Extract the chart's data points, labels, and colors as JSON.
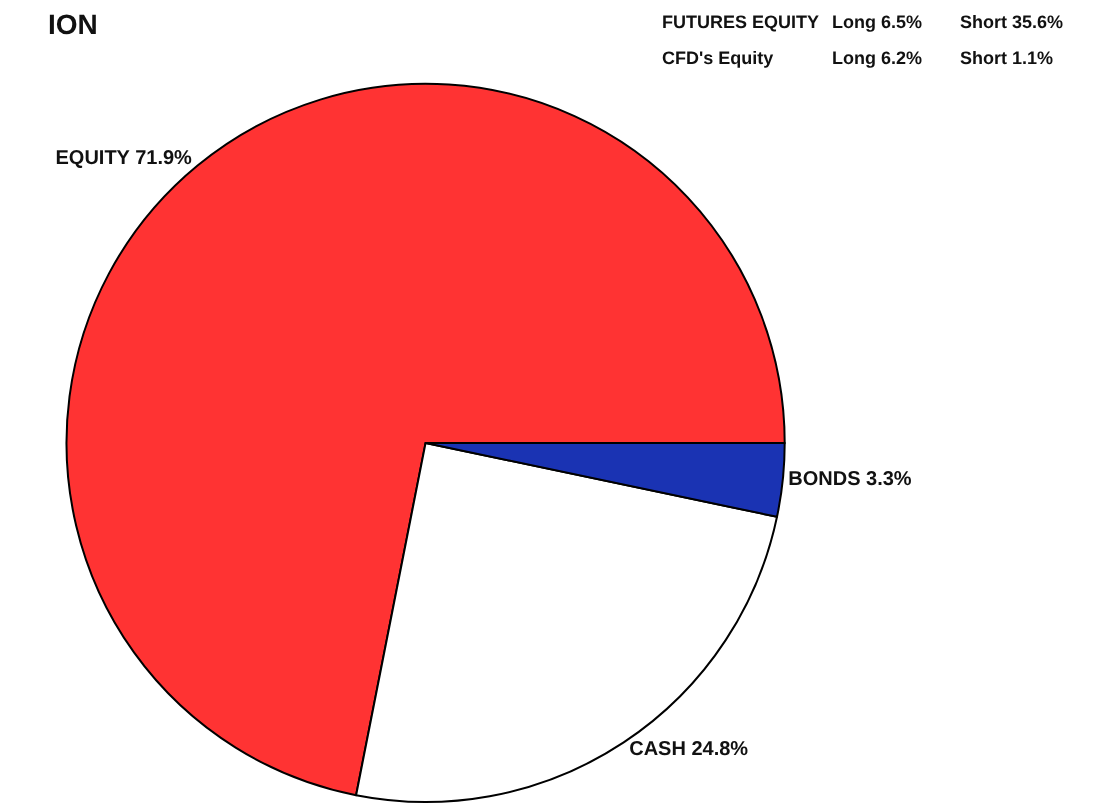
{
  "chart_data": {
    "type": "pie",
    "title": "ION",
    "categories": [
      "EQUITY",
      "CASH",
      "BONDS"
    ],
    "values": [
      71.9,
      24.8,
      3.3
    ],
    "value_labels": [
      "71.9%",
      "24.8%",
      "3.3%"
    ],
    "colors": [
      "#ff3333",
      "#ffffff",
      "#1a33b3"
    ],
    "annotations": [
      "FUTURES EQUITY",
      "Long 6.5%",
      "Short 35.6%",
      "CFD's Equity",
      "Long 6.2%",
      "Short 1.1%"
    ],
    "legend": false
  }
}
